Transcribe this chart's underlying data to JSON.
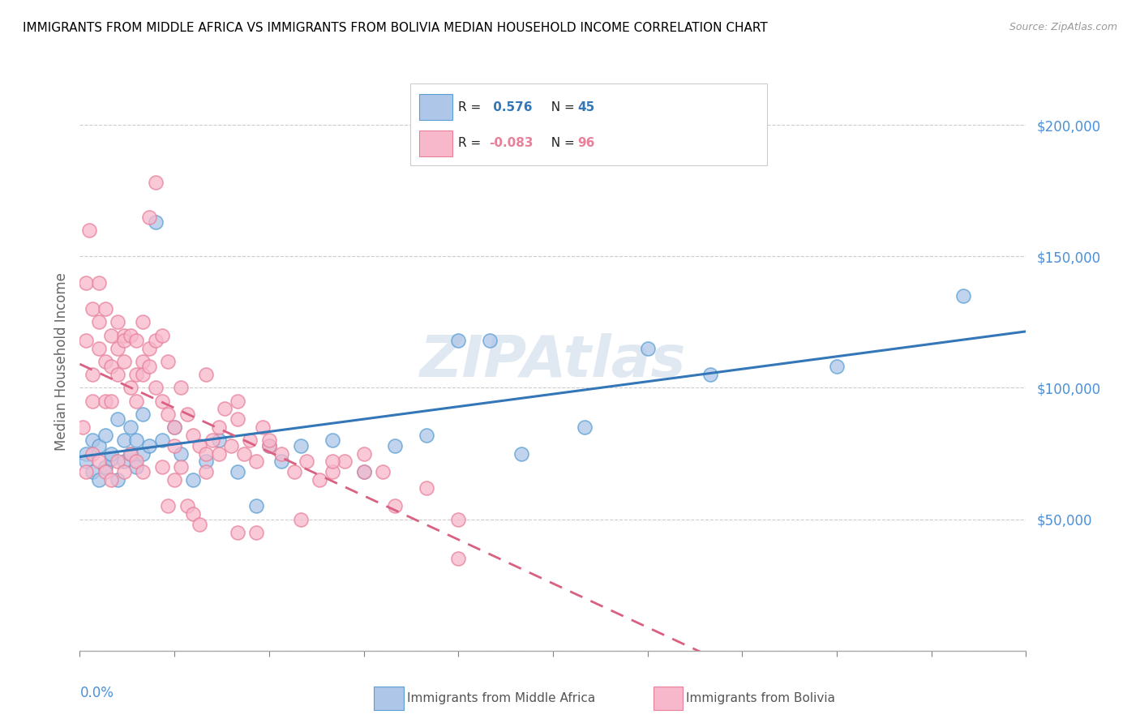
{
  "title": "IMMIGRANTS FROM MIDDLE AFRICA VS IMMIGRANTS FROM BOLIVIA MEDIAN HOUSEHOLD INCOME CORRELATION CHART",
  "source": "Source: ZipAtlas.com",
  "ylabel": "Median Household Income",
  "xlim": [
    0.0,
    0.15
  ],
  "ylim": [
    0,
    220000
  ],
  "blue_R": 0.576,
  "blue_N": 45,
  "pink_R": -0.083,
  "pink_N": 96,
  "blue_fill_color": "#aec6e8",
  "pink_fill_color": "#f7b8cc",
  "blue_edge_color": "#5a9fd4",
  "pink_edge_color": "#e8809a",
  "blue_line_color": "#3477b8",
  "pink_line_color": "#d96080",
  "ytick_color": "#4a90d9",
  "xtick_label_color": "#4a90d9",
  "grid_color": "#cccccc",
  "watermark_color": "#d0dde8",
  "blue_scatter_x": [
    0.001,
    0.001,
    0.002,
    0.002,
    0.003,
    0.003,
    0.004,
    0.004,
    0.005,
    0.005,
    0.006,
    0.006,
    0.007,
    0.007,
    0.008,
    0.008,
    0.009,
    0.009,
    0.01,
    0.01,
    0.011,
    0.012,
    0.013,
    0.015,
    0.016,
    0.018,
    0.02,
    0.022,
    0.025,
    0.028,
    0.03,
    0.032,
    0.035,
    0.04,
    0.045,
    0.05,
    0.055,
    0.06,
    0.065,
    0.07,
    0.08,
    0.09,
    0.1,
    0.12,
    0.14
  ],
  "blue_scatter_y": [
    75000,
    72000,
    80000,
    68000,
    65000,
    78000,
    70000,
    82000,
    73000,
    75000,
    65000,
    88000,
    72000,
    80000,
    75000,
    85000,
    70000,
    80000,
    75000,
    90000,
    78000,
    163000,
    80000,
    85000,
    75000,
    65000,
    72000,
    80000,
    68000,
    55000,
    78000,
    72000,
    78000,
    80000,
    68000,
    78000,
    82000,
    118000,
    118000,
    75000,
    85000,
    115000,
    105000,
    108000,
    135000
  ],
  "pink_scatter_x": [
    0.0005,
    0.001,
    0.001,
    0.0015,
    0.002,
    0.002,
    0.002,
    0.003,
    0.003,
    0.003,
    0.004,
    0.004,
    0.004,
    0.005,
    0.005,
    0.005,
    0.006,
    0.006,
    0.006,
    0.007,
    0.007,
    0.007,
    0.008,
    0.008,
    0.009,
    0.009,
    0.009,
    0.01,
    0.01,
    0.01,
    0.011,
    0.011,
    0.012,
    0.012,
    0.013,
    0.013,
    0.014,
    0.014,
    0.015,
    0.015,
    0.016,
    0.017,
    0.018,
    0.019,
    0.02,
    0.021,
    0.022,
    0.023,
    0.024,
    0.025,
    0.026,
    0.027,
    0.028,
    0.029,
    0.03,
    0.032,
    0.034,
    0.036,
    0.038,
    0.04,
    0.042,
    0.045,
    0.048,
    0.05,
    0.055,
    0.06,
    0.001,
    0.002,
    0.003,
    0.004,
    0.005,
    0.006,
    0.007,
    0.008,
    0.009,
    0.01,
    0.011,
    0.012,
    0.013,
    0.014,
    0.015,
    0.016,
    0.017,
    0.018,
    0.019,
    0.02,
    0.022,
    0.025,
    0.028,
    0.03,
    0.035,
    0.04,
    0.045,
    0.02,
    0.025,
    0.06
  ],
  "pink_scatter_y": [
    85000,
    118000,
    140000,
    160000,
    95000,
    130000,
    105000,
    125000,
    140000,
    115000,
    110000,
    130000,
    95000,
    120000,
    95000,
    108000,
    125000,
    105000,
    115000,
    120000,
    110000,
    118000,
    100000,
    120000,
    95000,
    105000,
    118000,
    110000,
    125000,
    105000,
    115000,
    108000,
    100000,
    118000,
    95000,
    120000,
    110000,
    90000,
    78000,
    85000,
    100000,
    90000,
    82000,
    78000,
    75000,
    80000,
    85000,
    92000,
    78000,
    88000,
    75000,
    80000,
    72000,
    85000,
    78000,
    75000,
    68000,
    72000,
    65000,
    68000,
    72000,
    75000,
    68000,
    55000,
    62000,
    35000,
    68000,
    75000,
    72000,
    68000,
    65000,
    72000,
    68000,
    75000,
    72000,
    68000,
    165000,
    178000,
    70000,
    55000,
    65000,
    70000,
    55000,
    52000,
    48000,
    68000,
    75000,
    45000,
    45000,
    80000,
    50000,
    72000,
    68000,
    105000,
    95000,
    50000
  ]
}
